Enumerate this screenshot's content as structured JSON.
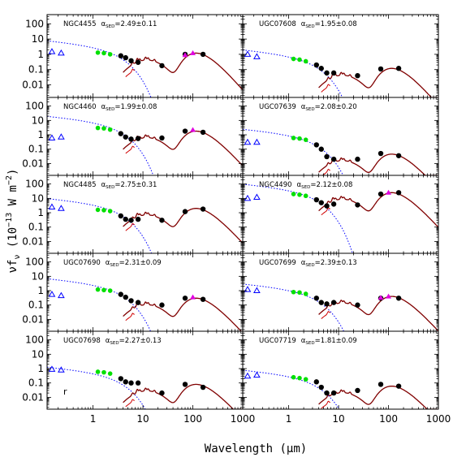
{
  "figure": {
    "ylabel": "νf",
    "ylabel_sub": "ν",
    "ylabel_rest": " (10",
    "ylabel_exp1": "−13",
    "ylabel_rest2": " W m",
    "ylabel_exp2": "−2",
    "ylabel_close": ")",
    "xlabel": "Wavelength (μm)",
    "corner_letter": "r"
  },
  "chart_data": {
    "type": "scatter",
    "xscale": "log",
    "yscale": "log",
    "xlim": [
      0.12,
      1000
    ],
    "ylim": [
      0.0015,
      400
    ],
    "x_ticks": [
      1,
      10,
      100,
      1000
    ],
    "x_tick_labels": [
      "1",
      "10",
      "100",
      "1000"
    ],
    "y_ticks": [
      0.01,
      0.1,
      1,
      10,
      100
    ],
    "y_tick_labels": [
      "0.01",
      "0.1",
      "1",
      "10",
      "100"
    ],
    "grid": false,
    "legend": "none",
    "colors": {
      "green": "#00e000",
      "black": "#000000",
      "magenta": "#e000e0",
      "blue": "#0000ff",
      "red": "#d00000",
      "brown": "#800000"
    },
    "panels": [
      {
        "name": "NGC4455",
        "alpha_label": "α",
        "alpha_sub": "SED",
        "alpha_value": "=2.49±0.11",
        "scale": 1.2,
        "stellar": 8,
        "uv": [
          [
            0.15,
            1.5
          ],
          [
            0.23,
            1.2
          ]
        ],
        "green": [
          [
            1.25,
            1.3
          ],
          [
            1.65,
            1.2
          ],
          [
            2.2,
            1.0
          ]
        ],
        "black": [
          [
            3.6,
            0.8
          ],
          [
            4.5,
            0.6
          ],
          [
            5.8,
            0.38
          ],
          [
            8.0,
            0.3
          ],
          [
            24,
            0.18
          ],
          [
            70,
            1.0
          ],
          [
            160,
            1.0
          ]
        ],
        "magenta": [
          [
            70,
            0.9
          ],
          [
            100,
            1.2
          ]
        ]
      },
      {
        "name": "UGC07608",
        "alpha_label": "α",
        "alpha_sub": "SED",
        "alpha_value": "=1.95±0.08",
        "scale": 0.12,
        "stellar": 2,
        "uv": [
          [
            0.15,
            1.0
          ],
          [
            0.23,
            0.7
          ]
        ],
        "green": [
          [
            1.25,
            0.5
          ],
          [
            1.65,
            0.45
          ],
          [
            2.2,
            0.35
          ]
        ],
        "black": [
          [
            3.6,
            0.2
          ],
          [
            4.5,
            0.12
          ],
          [
            5.8,
            0.06
          ],
          [
            8.0,
            0.06
          ],
          [
            24,
            0.04
          ],
          [
            70,
            0.11
          ],
          [
            160,
            0.12
          ]
        ],
        "magenta": []
      },
      {
        "name": "NGC4460",
        "alpha_label": "α",
        "alpha_sub": "SED",
        "alpha_value": "=1.99±0.08",
        "scale": 1.8,
        "stellar": 20,
        "uv": [
          [
            0.15,
            0.6
          ],
          [
            0.23,
            0.7
          ]
        ],
        "green": [
          [
            1.25,
            3.0
          ],
          [
            1.65,
            2.8
          ],
          [
            2.2,
            2.3
          ]
        ],
        "black": [
          [
            3.6,
            1.2
          ],
          [
            4.5,
            0.7
          ],
          [
            5.8,
            0.5
          ],
          [
            8.0,
            0.55
          ],
          [
            24,
            0.6
          ],
          [
            70,
            1.8
          ],
          [
            160,
            1.5
          ]
        ],
        "magenta": [
          [
            100,
            2.2
          ]
        ]
      },
      {
        "name": "UGC07639",
        "alpha_label": "α",
        "alpha_sub": "SED",
        "alpha_value": "=2.08±0.20",
        "scale": 0.045,
        "stellar": 2.5,
        "uv": [
          [
            0.15,
            0.3
          ],
          [
            0.23,
            0.3
          ]
        ],
        "green": [
          [
            1.25,
            0.6
          ],
          [
            1.65,
            0.55
          ],
          [
            2.2,
            0.45
          ]
        ],
        "black": [
          [
            3.6,
            0.2
          ],
          [
            4.5,
            0.1
          ],
          [
            5.8,
            0.03
          ],
          [
            8.0,
            0.02
          ],
          [
            24,
            0.02
          ],
          [
            70,
            0.05
          ],
          [
            160,
            0.035
          ]
        ],
        "magenta": []
      },
      {
        "name": "NGC4485",
        "alpha_label": "α",
        "alpha_sub": "SED",
        "alpha_value": "=2.75±0.31",
        "scale": 2.0,
        "stellar": 10,
        "uv": [
          [
            0.15,
            2.5
          ],
          [
            0.23,
            2.0
          ]
        ],
        "green": [
          [
            1.25,
            1.6
          ],
          [
            1.65,
            1.5
          ],
          [
            2.2,
            1.3
          ]
        ],
        "black": [
          [
            3.6,
            0.6
          ],
          [
            4.5,
            0.35
          ],
          [
            5.8,
            0.3
          ],
          [
            8.0,
            0.35
          ],
          [
            24,
            0.3
          ],
          [
            70,
            1.2
          ],
          [
            160,
            1.8
          ]
        ],
        "magenta": []
      },
      {
        "name": "NGC4490",
        "alpha_label": "α",
        "alpha_sub": "SED",
        "alpha_value": "=2.12±0.08",
        "scale": 25,
        "stellar": 100,
        "uv": [
          [
            0.15,
            10
          ],
          [
            0.23,
            12
          ]
        ],
        "green": [
          [
            1.25,
            20
          ],
          [
            1.65,
            18
          ],
          [
            2.2,
            15
          ]
        ],
        "black": [
          [
            3.6,
            8
          ],
          [
            4.5,
            5
          ],
          [
            5.8,
            3
          ],
          [
            8.0,
            4
          ],
          [
            24,
            3.5
          ],
          [
            70,
            20
          ],
          [
            160,
            25
          ]
        ],
        "magenta": [
          [
            100,
            25
          ]
        ]
      },
      {
        "name": "UGC07690",
        "alpha_label": "α",
        "alpha_sub": "SED",
        "alpha_value": "=2.31±0.09",
        "scale": 0.3,
        "stellar": 7,
        "uv": [
          [
            0.15,
            0.55
          ],
          [
            0.23,
            0.45
          ]
        ],
        "green": [
          [
            1.25,
            1.2
          ],
          [
            1.65,
            1.1
          ],
          [
            2.2,
            1.0
          ]
        ],
        "black": [
          [
            3.6,
            0.55
          ],
          [
            4.5,
            0.35
          ],
          [
            5.8,
            0.2
          ],
          [
            8.0,
            0.15
          ],
          [
            24,
            0.1
          ],
          [
            70,
            0.3
          ],
          [
            160,
            0.25
          ]
        ],
        "magenta": [
          [
            100,
            0.35
          ]
        ]
      },
      {
        "name": "UGC07699",
        "alpha_label": "α",
        "alpha_sub": "SED",
        "alpha_value": "=2.39±0.13",
        "scale": 0.4,
        "stellar": 3,
        "uv": [
          [
            0.15,
            1.2
          ],
          [
            0.23,
            1.0
          ]
        ],
        "green": [
          [
            1.25,
            0.8
          ],
          [
            1.65,
            0.75
          ],
          [
            2.2,
            0.6
          ]
        ],
        "black": [
          [
            3.6,
            0.3
          ],
          [
            4.5,
            0.15
          ],
          [
            5.8,
            0.12
          ],
          [
            8.0,
            0.15
          ],
          [
            24,
            0.1
          ],
          [
            70,
            0.3
          ],
          [
            160,
            0.3
          ]
        ],
        "magenta": [
          [
            70,
            0.32
          ],
          [
            100,
            0.4
          ]
        ]
      },
      {
        "name": "UGC07698",
        "alpha_label": "α",
        "alpha_sub": "SED",
        "alpha_value": "=2.27±0.13",
        "scale": 0.08,
        "stellar": 1.3,
        "uv": [
          [
            0.15,
            0.9
          ],
          [
            0.23,
            0.8
          ]
        ],
        "green": [
          [
            1.25,
            0.6
          ],
          [
            1.65,
            0.55
          ],
          [
            2.2,
            0.45
          ]
        ],
        "black": [
          [
            3.6,
            0.2
          ],
          [
            4.5,
            0.12
          ],
          [
            5.8,
            0.1
          ],
          [
            8.0,
            0.1
          ],
          [
            24,
            0.02
          ],
          [
            70,
            0.08
          ],
          [
            160,
            0.05
          ]
        ],
        "magenta": []
      },
      {
        "name": "UGC07719",
        "alpha_label": "α",
        "alpha_sub": "SED",
        "alpha_value": "=1.81±0.09",
        "scale": 0.06,
        "stellar": 0.8,
        "uv": [
          [
            0.15,
            0.3
          ],
          [
            0.23,
            0.35
          ]
        ],
        "green": [
          [
            1.25,
            0.25
          ],
          [
            1.65,
            0.22
          ],
          [
            2.2,
            0.18
          ]
        ],
        "black": [
          [
            3.6,
            0.12
          ],
          [
            4.5,
            0.05
          ],
          [
            5.8,
            0.02
          ],
          [
            8.0,
            0.02
          ],
          [
            24,
            0.03
          ],
          [
            70,
            0.08
          ],
          [
            160,
            0.06
          ]
        ],
        "magenta": []
      }
    ]
  }
}
